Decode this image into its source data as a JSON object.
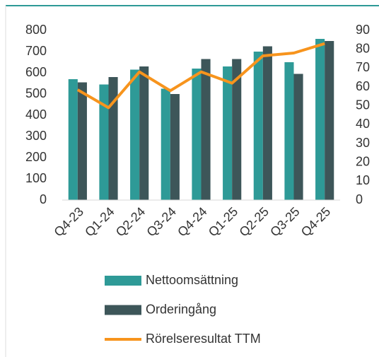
{
  "chart_data": {
    "type": "bar_line",
    "categories": [
      "Q4-23",
      "Q1-24",
      "Q2-24",
      "Q3-24",
      "Q4-24",
      "Q1-25",
      "Q2-25",
      "Q3-25",
      "Q4-25"
    ],
    "series": [
      {
        "name": "Nettoomsättning",
        "type": "bar",
        "color": "#2e9a97",
        "values": [
          570,
          545,
          615,
          525,
          620,
          630,
          700,
          650,
          760
        ]
      },
      {
        "name": "Orderingång",
        "type": "bar",
        "color": "#3d5659",
        "values": [
          555,
          580,
          630,
          500,
          665,
          665,
          725,
          595,
          750
        ]
      },
      {
        "name": "Rörelseresultat TTM",
        "type": "line",
        "axis": "y2",
        "color": "#f7941d",
        "values": [
          58.5,
          49,
          68,
          58,
          68,
          62,
          76.5,
          78,
          83
        ]
      }
    ],
    "ylim": [
      0,
      800
    ],
    "yticks": [
      0,
      100,
      200,
      300,
      400,
      500,
      600,
      700,
      800
    ],
    "y2lim": [
      0,
      90
    ],
    "y2ticks": [
      0,
      10,
      20,
      30,
      40,
      50,
      60,
      70,
      80,
      90
    ],
    "legend": "bottom"
  }
}
